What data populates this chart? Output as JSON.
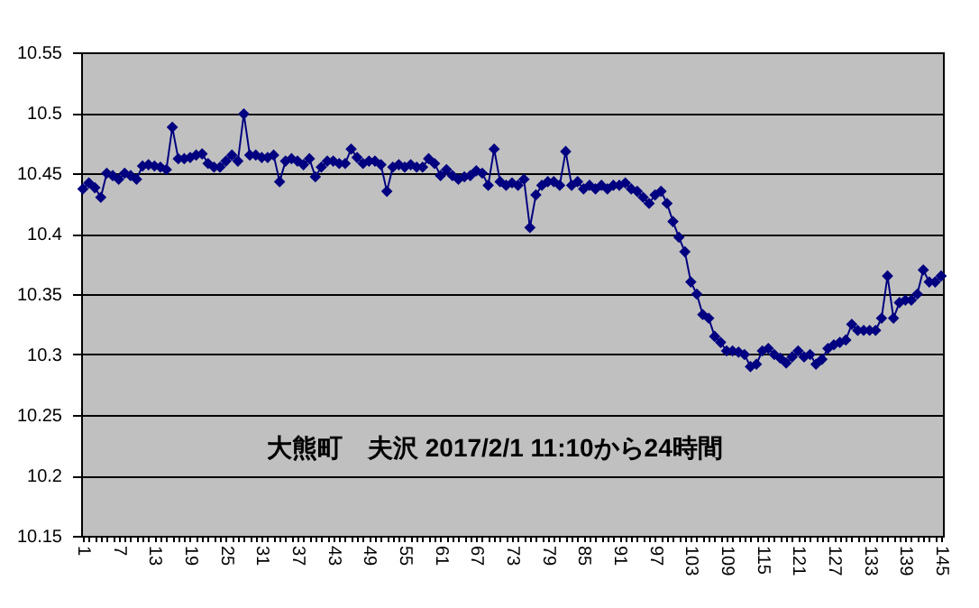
{
  "chart_data": {
    "type": "line",
    "annotations": [
      "大熊町　夫沢 2017/2/1 11:10から24時間"
    ],
    "categories": [
      "1",
      null,
      null,
      null,
      null,
      null,
      "7",
      null,
      null,
      null,
      null,
      null,
      "13",
      null,
      null,
      null,
      null,
      null,
      "19",
      null,
      null,
      null,
      null,
      null,
      "25",
      null,
      null,
      null,
      null,
      null,
      "31",
      null,
      null,
      null,
      null,
      null,
      "37",
      null,
      null,
      null,
      null,
      null,
      "43",
      null,
      null,
      null,
      null,
      null,
      "49",
      null,
      null,
      null,
      null,
      null,
      "55",
      null,
      null,
      null,
      null,
      null,
      "61",
      null,
      null,
      null,
      null,
      null,
      "67",
      null,
      null,
      null,
      null,
      null,
      "73",
      null,
      null,
      null,
      null,
      null,
      "79",
      null,
      null,
      null,
      null,
      null,
      "85",
      null,
      null,
      null,
      null,
      null,
      "91",
      null,
      null,
      null,
      null,
      null,
      "97",
      null,
      null,
      null,
      null,
      null,
      "103",
      null,
      null,
      null,
      null,
      null,
      "109",
      null,
      null,
      null,
      null,
      null,
      "115",
      null,
      null,
      null,
      null,
      null,
      "121",
      null,
      null,
      null,
      null,
      null,
      "127",
      null,
      null,
      null,
      null,
      null,
      "133",
      null,
      null,
      null,
      null,
      null,
      "139",
      null,
      null,
      null,
      null,
      null,
      "145"
    ],
    "series": [
      {
        "color": "#000080",
        "values": [
          10.437,
          10.442,
          10.438,
          10.43,
          10.45,
          10.448,
          10.445,
          10.45,
          10.448,
          10.445,
          10.456,
          10.457,
          10.456,
          10.455,
          10.453,
          10.488,
          10.462,
          10.462,
          10.463,
          10.465,
          10.466,
          10.458,
          10.455,
          10.455,
          10.46,
          10.465,
          10.46,
          10.499,
          10.465,
          10.465,
          10.463,
          10.463,
          10.465,
          10.443,
          10.46,
          10.462,
          10.46,
          10.457,
          10.462,
          10.447,
          10.455,
          10.46,
          10.46,
          10.458,
          10.458,
          10.47,
          10.463,
          10.458,
          10.46,
          10.46,
          10.457,
          10.435,
          10.455,
          10.457,
          10.455,
          10.457,
          10.455,
          10.455,
          10.462,
          10.458,
          10.448,
          10.453,
          10.448,
          10.445,
          10.447,
          10.448,
          10.452,
          10.45,
          10.44,
          10.47,
          10.443,
          10.44,
          10.442,
          10.44,
          10.445,
          10.405,
          10.432,
          10.44,
          10.443,
          10.443,
          10.44,
          10.468,
          10.44,
          10.443,
          10.437,
          10.44,
          10.437,
          10.44,
          10.437,
          10.44,
          10.44,
          10.442,
          10.437,
          10.435,
          10.43,
          10.425,
          10.432,
          10.435,
          10.425,
          10.41,
          10.397,
          10.385,
          10.36,
          10.35,
          10.333,
          10.33,
          10.315,
          10.31,
          10.303,
          10.303,
          10.302,
          10.3,
          10.29,
          10.292,
          10.303,
          10.305,
          10.3,
          10.297,
          10.293,
          10.298,
          10.303,
          10.298,
          10.3,
          10.292,
          10.296,
          10.305,
          10.308,
          10.31,
          10.312,
          10.325,
          10.32,
          10.32,
          10.32,
          10.32,
          10.33,
          10.365,
          10.33,
          10.343,
          10.345,
          10.345,
          10.35,
          10.37,
          10.36,
          10.36,
          10.365
        ]
      }
    ],
    "ylim": [
      10.15,
      10.55
    ],
    "yticks": [
      10.15,
      10.2,
      10.25,
      10.3,
      10.35,
      10.4,
      10.45,
      10.5,
      10.55
    ],
    "grid": "y",
    "marker": "diamond",
    "line_style": "solid"
  }
}
